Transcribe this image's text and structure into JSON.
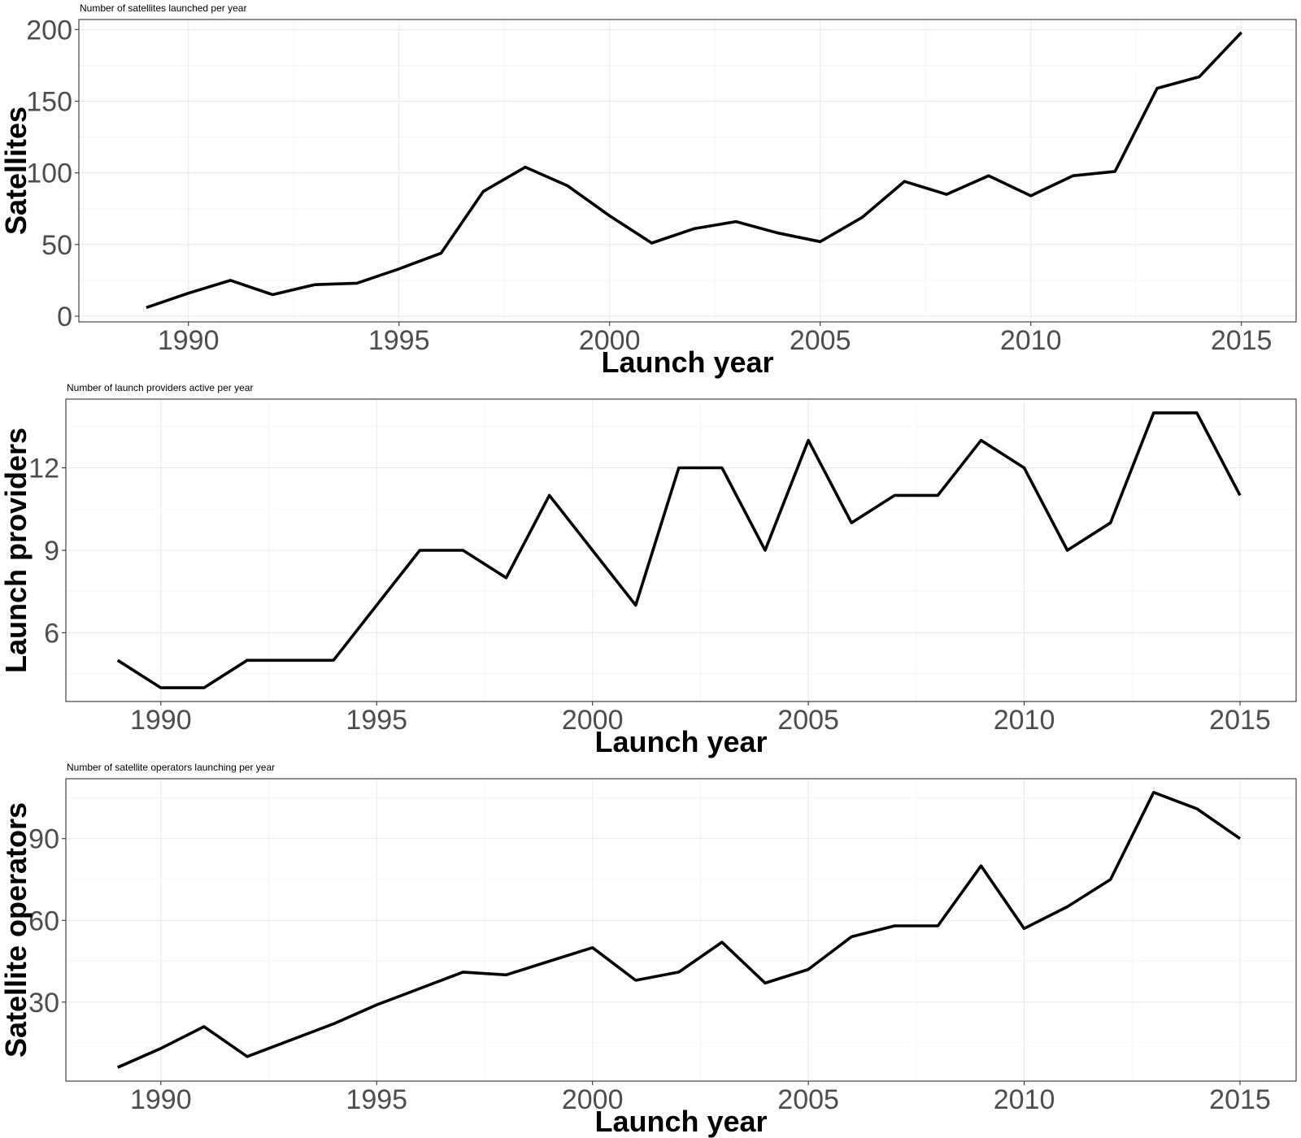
{
  "chart_data": [
    {
      "type": "line",
      "title": "Number of satellites launched per year",
      "xlabel": "Launch year",
      "ylabel": "Satellites",
      "xlim": [
        1987.4,
        2016.3
      ],
      "ylim": [
        -4,
        207
      ],
      "xticks": [
        1990,
        1995,
        2000,
        2005,
        2010,
        2015
      ],
      "yticks": [
        0,
        50,
        100,
        150,
        200
      ],
      "grid": true,
      "x": [
        1989,
        1990,
        1991,
        1992,
        1993,
        1994,
        1995,
        1996,
        1997,
        1998,
        1999,
        2000,
        2001,
        2002,
        2003,
        2004,
        2005,
        2006,
        2007,
        2008,
        2009,
        2010,
        2011,
        2012,
        2013,
        2014,
        2015
      ],
      "series": [
        {
          "values": [
            6,
            16,
            25,
            15,
            22,
            23,
            33,
            44,
            87,
            104,
            91,
            70,
            51,
            61,
            66,
            58,
            52,
            69,
            94,
            85,
            98,
            84,
            98,
            101,
            159,
            167,
            198
          ]
        }
      ]
    },
    {
      "type": "line",
      "title": "Number of launch providers active per year",
      "xlabel": "Launch year",
      "ylabel": "Launch providers",
      "xlim": [
        1987.8,
        2016.3
      ],
      "ylim": [
        3.5,
        14.5
      ],
      "xticks": [
        1990,
        1995,
        2000,
        2005,
        2010,
        2015
      ],
      "yticks": [
        6,
        9,
        12
      ],
      "grid": true,
      "x": [
        1989,
        1990,
        1991,
        1992,
        1993,
        1994,
        1995,
        1996,
        1997,
        1998,
        1999,
        2000,
        2001,
        2002,
        2003,
        2004,
        2005,
        2006,
        2007,
        2008,
        2009,
        2010,
        2011,
        2012,
        2013,
        2014,
        2015
      ],
      "series": [
        {
          "values": [
            5,
            4,
            4,
            5,
            5,
            5,
            7,
            9,
            9,
            8,
            11,
            9,
            7,
            12,
            12,
            9,
            13,
            10,
            11,
            11,
            13,
            12,
            9,
            10,
            14,
            14,
            11
          ]
        }
      ]
    },
    {
      "type": "line",
      "title": "Number of satellite operators launching per year",
      "xlabel": "Launch year",
      "ylabel": "Satellite operators",
      "xlim": [
        1987.8,
        2016.3
      ],
      "ylim": [
        1,
        112
      ],
      "xticks": [
        1990,
        1995,
        2000,
        2005,
        2010,
        2015
      ],
      "yticks": [
        30,
        60,
        90
      ],
      "grid": true,
      "x": [
        1989,
        1990,
        1991,
        1992,
        1993,
        1994,
        1995,
        1996,
        1997,
        1998,
        1999,
        2000,
        2001,
        2002,
        2003,
        2004,
        2005,
        2006,
        2007,
        2008,
        2009,
        2010,
        2011,
        2012,
        2013,
        2014,
        2015
      ],
      "series": [
        {
          "values": [
            6,
            13,
            21,
            10,
            16,
            22,
            29,
            35,
            41,
            40,
            45,
            50,
            38,
            41,
            52,
            37,
            42,
            54,
            58,
            58,
            80,
            57,
            65,
            75,
            107,
            101,
            90
          ]
        }
      ]
    }
  ]
}
